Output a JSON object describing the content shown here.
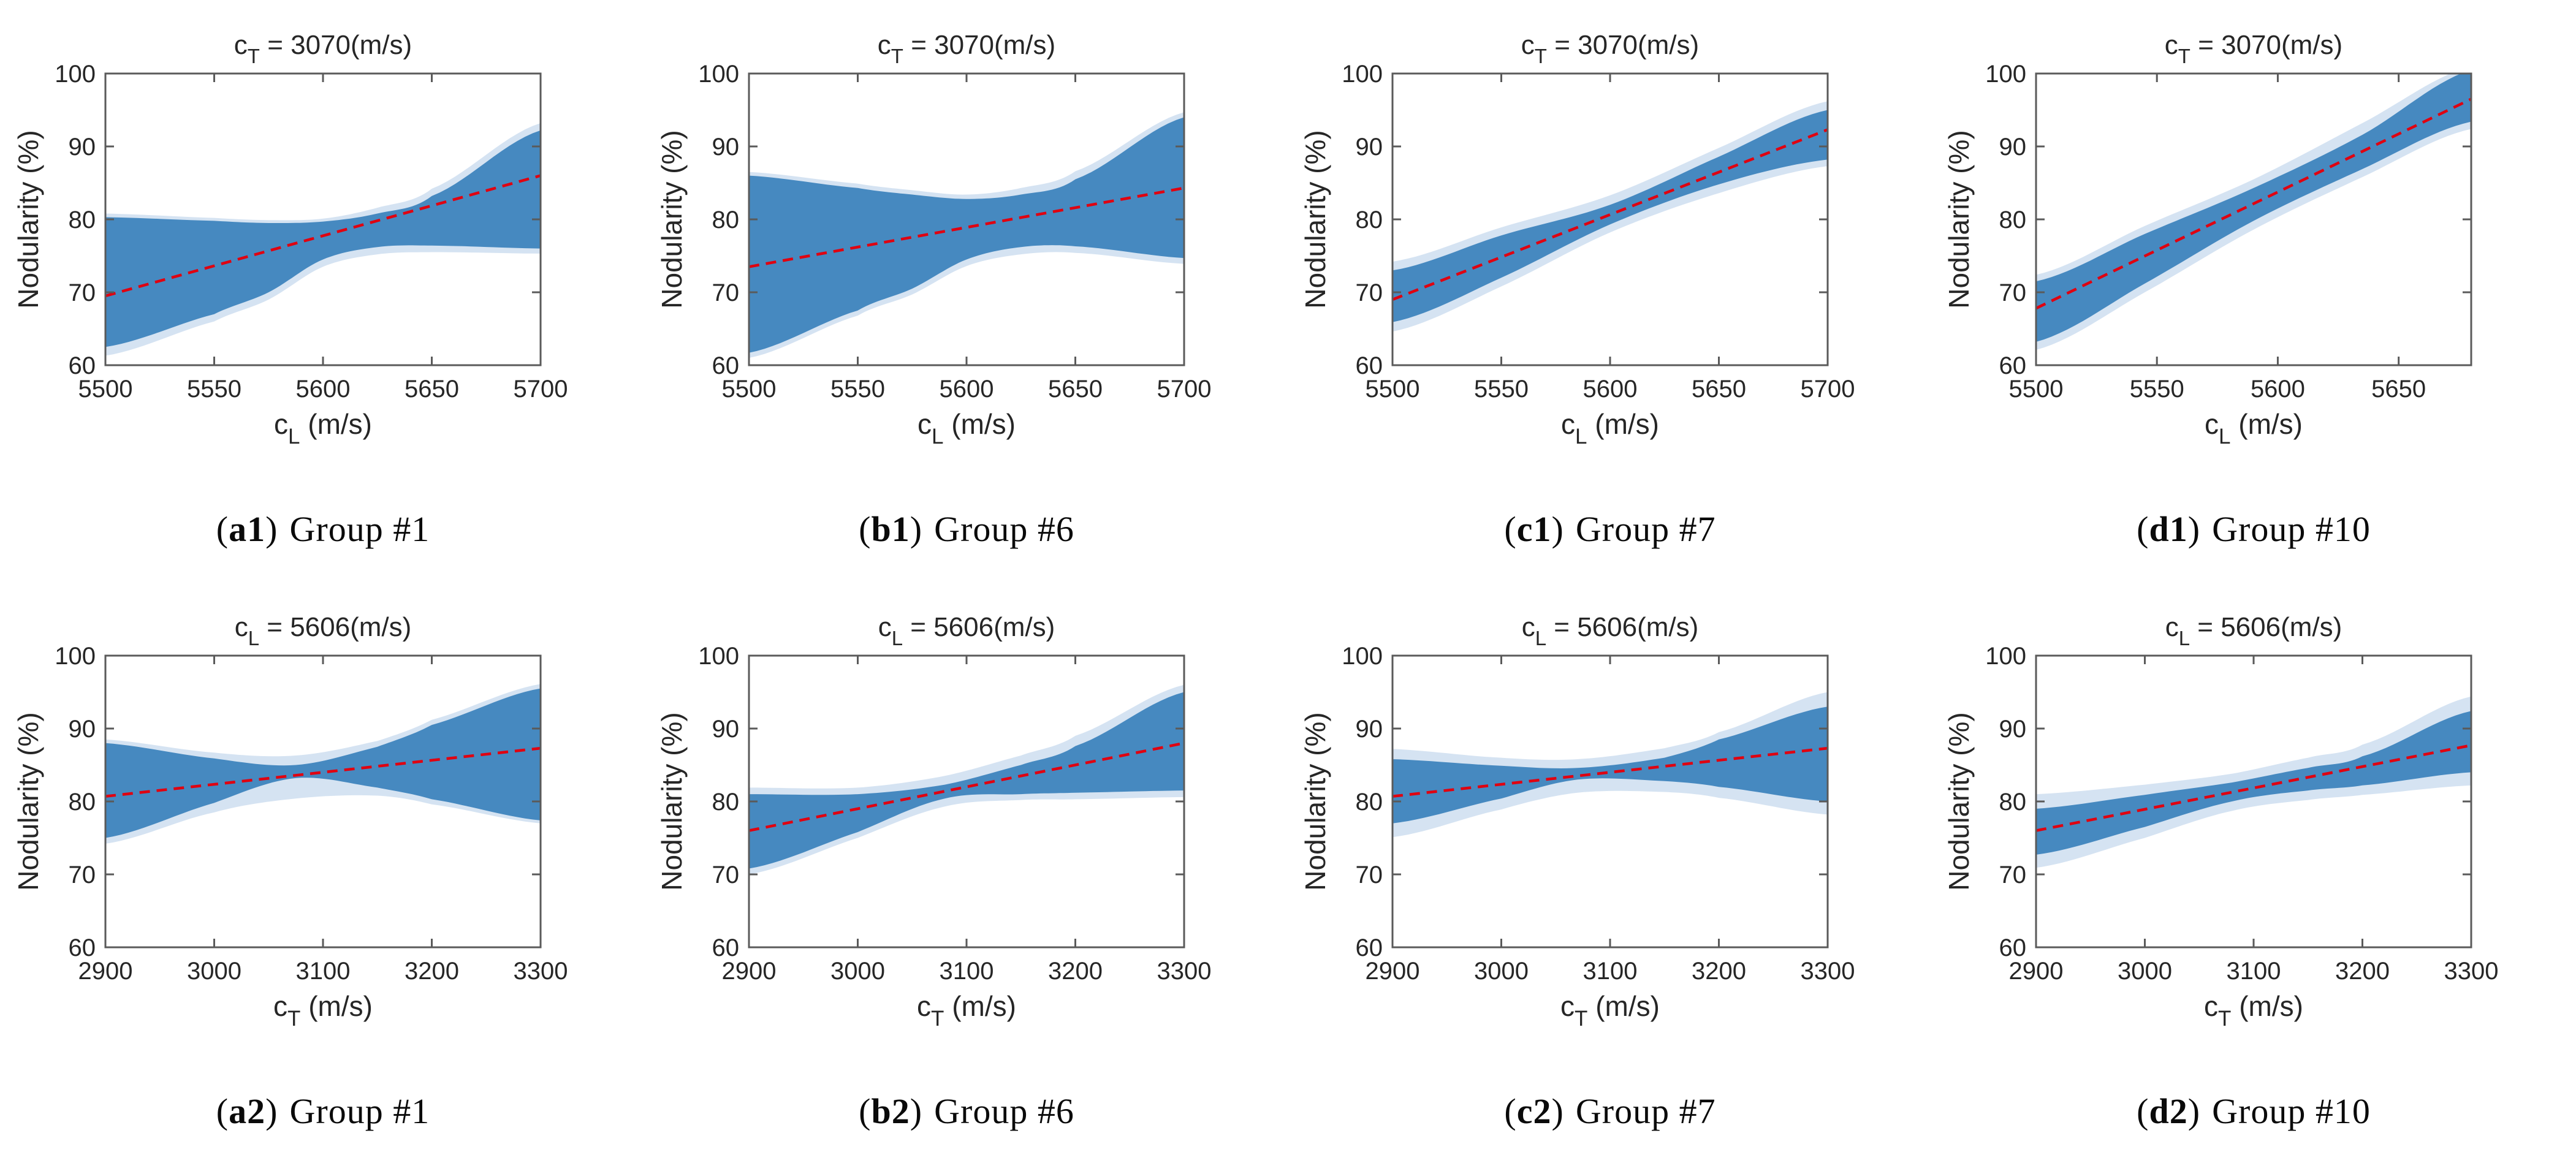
{
  "figure": {
    "ylabel": "Nodularity (%)",
    "ylim": [
      60,
      100
    ],
    "yticks": [
      60,
      70,
      80,
      90,
      100
    ],
    "colors": {
      "outer_band": "#D5E3F2",
      "inner_band": "#4689C0",
      "fit_line": "#E00010",
      "axis": "#5A5A5A",
      "text": "#262626",
      "background": "#FFFFFF"
    }
  },
  "chart_data": [
    {
      "id": "a1",
      "type": "area",
      "caption": {
        "label": "a1",
        "text": "Group #1"
      },
      "title": {
        "base": "c",
        "sub": "T",
        "rest": " = 3070(m/s)"
      },
      "xlabel": {
        "base": "c",
        "sub": "L",
        "rest": " (m/s)"
      },
      "xlim": [
        5500,
        5700
      ],
      "xticks": [
        5500,
        5550,
        5600,
        5650,
        5700
      ],
      "x": [
        5500,
        5550,
        5575,
        5600,
        5625,
        5650,
        5700
      ],
      "outer_low": [
        61.3,
        66.0,
        69.0,
        73.5,
        75.2,
        75.5,
        75.3
      ],
      "inner_low": [
        62.5,
        67.0,
        70.0,
        74.5,
        76.2,
        76.4,
        76.0
      ],
      "inner_high": [
        80.3,
        79.8,
        79.5,
        79.7,
        80.8,
        83.2,
        92.2
      ],
      "outer_high": [
        80.8,
        80.2,
        79.9,
        80.1,
        81.6,
        84.2,
        93.2
      ],
      "fit": {
        "x": [
          5500,
          5700
        ],
        "y": [
          69.5,
          86.0
        ]
      }
    },
    {
      "id": "b1",
      "type": "area",
      "caption": {
        "label": "b1",
        "text": "Group #6"
      },
      "title": {
        "base": "c",
        "sub": "T",
        "rest": " = 3070(m/s)"
      },
      "xlabel": {
        "base": "c",
        "sub": "L",
        "rest": " (m/s)"
      },
      "xlim": [
        5500,
        5700
      ],
      "xticks": [
        5500,
        5550,
        5600,
        5650,
        5700
      ],
      "x": [
        5500,
        5550,
        5575,
        5600,
        5625,
        5650,
        5700
      ],
      "outer_low": [
        61.0,
        66.8,
        69.7,
        73.6,
        75.2,
        75.4,
        73.9
      ],
      "inner_low": [
        61.7,
        67.5,
        70.5,
        74.5,
        76.2,
        76.3,
        74.7
      ],
      "inner_high": [
        86.0,
        84.3,
        83.4,
        82.8,
        83.4,
        85.5,
        94.0
      ],
      "outer_high": [
        86.5,
        84.9,
        84.0,
        83.4,
        84.3,
        86.6,
        94.7
      ],
      "fit": {
        "x": [
          5500,
          5700
        ],
        "y": [
          73.5,
          84.3
        ]
      }
    },
    {
      "id": "c1",
      "type": "area",
      "caption": {
        "label": "c1",
        "text": "Group #7"
      },
      "title": {
        "base": "c",
        "sub": "T",
        "rest": " = 3070(m/s)"
      },
      "xlabel": {
        "base": "c",
        "sub": "L",
        "rest": " (m/s)"
      },
      "xlim": [
        5500,
        5700
      ],
      "xticks": [
        5500,
        5550,
        5600,
        5650,
        5700
      ],
      "x": [
        5500,
        5550,
        5600,
        5650,
        5700
      ],
      "outer_low": [
        64.6,
        70.8,
        78.2,
        83.6,
        87.3
      ],
      "inner_low": [
        65.9,
        72.0,
        79.3,
        84.8,
        88.2
      ],
      "inner_high": [
        73.0,
        77.8,
        82.0,
        88.6,
        95.0
      ],
      "outer_high": [
        74.2,
        78.9,
        83.3,
        89.8,
        96.2
      ],
      "fit": {
        "x": [
          5500,
          5700
        ],
        "y": [
          69.0,
          92.3
        ]
      }
    },
    {
      "id": "d1",
      "type": "area",
      "caption": {
        "label": "d1",
        "text": "Group #10"
      },
      "title": {
        "base": "c",
        "sub": "T",
        "rest": " = 3070(m/s)"
      },
      "xlabel": {
        "base": "c",
        "sub": "L",
        "rest": " (m/s)"
      },
      "xlim": [
        5500,
        5680
      ],
      "xticks": [
        5500,
        5550,
        5600,
        5650
      ],
      "x": [
        5500,
        5545,
        5590,
        5635,
        5680
      ],
      "outer_low": [
        62.1,
        70.0,
        78.6,
        85.8,
        92.4
      ],
      "inner_low": [
        63.2,
        71.2,
        79.8,
        86.9,
        93.4
      ],
      "inner_high": [
        71.5,
        78.0,
        84.3,
        91.6,
        100.5
      ],
      "outer_high": [
        72.4,
        79.1,
        85.5,
        93.2,
        101.0
      ],
      "fit": {
        "x": [
          5500,
          5680
        ],
        "y": [
          67.8,
          96.5
        ]
      }
    },
    {
      "id": "a2",
      "type": "area",
      "caption": {
        "label": "a2",
        "text": "Group #1"
      },
      "title": {
        "base": "c",
        "sub": "L",
        "rest": " = 5606(m/s)"
      },
      "xlabel": {
        "base": "c",
        "sub": "T",
        "rest": " (m/s)"
      },
      "xlim": [
        2900,
        3300
      ],
      "xticks": [
        2900,
        3000,
        3100,
        3200,
        3300
      ],
      "x": [
        2900,
        3000,
        3075,
        3150,
        3200,
        3300
      ],
      "outer_low": [
        74.2,
        78.5,
        80.4,
        80.8,
        79.6,
        77.0
      ],
      "inner_low": [
        75.0,
        79.8,
        83.2,
        81.9,
        80.3,
        77.4
      ],
      "inner_high": [
        88.0,
        85.9,
        85.0,
        87.5,
        90.5,
        95.5
      ],
      "outer_high": [
        88.5,
        86.7,
        86.3,
        88.3,
        91.2,
        96.1
      ],
      "fit": {
        "x": [
          2900,
          3300
        ],
        "y": [
          80.7,
          87.3
        ]
      }
    },
    {
      "id": "b2",
      "type": "area",
      "caption": {
        "label": "b2",
        "text": "Group #6"
      },
      "title": {
        "base": "c",
        "sub": "L",
        "rest": " = 5606(m/s)"
      },
      "xlabel": {
        "base": "c",
        "sub": "T",
        "rest": " (m/s)"
      },
      "xlim": [
        2900,
        3300
      ],
      "xticks": [
        2900,
        3000,
        3100,
        3200,
        3300
      ],
      "x": [
        2900,
        3000,
        3080,
        3150,
        3200,
        3300
      ],
      "outer_low": [
        70.0,
        75.0,
        79.3,
        80.2,
        80.3,
        80.6
      ],
      "inner_low": [
        70.8,
        75.8,
        80.4,
        81.0,
        81.2,
        81.5
      ],
      "inner_high": [
        81.0,
        81.0,
        82.3,
        85.0,
        87.6,
        95.0
      ],
      "outer_high": [
        81.9,
        81.9,
        83.5,
        86.3,
        89.0,
        96.0
      ],
      "fit": {
        "x": [
          2900,
          3300
        ],
        "y": [
          76.0,
          88.0
        ]
      }
    },
    {
      "id": "c2",
      "type": "area",
      "caption": {
        "label": "c2",
        "text": "Group #7"
      },
      "title": {
        "base": "c",
        "sub": "L",
        "rest": " = 5606(m/s)"
      },
      "xlabel": {
        "base": "c",
        "sub": "T",
        "rest": " (m/s)"
      },
      "xlim": [
        2900,
        3300
      ],
      "xticks": [
        2900,
        3000,
        3100,
        3200,
        3300
      ],
      "x": [
        2900,
        3000,
        3070,
        3150,
        3200,
        3300
      ],
      "outer_low": [
        75.1,
        78.9,
        81.2,
        81.3,
        80.5,
        78.2
      ],
      "inner_low": [
        77.0,
        80.4,
        83.0,
        82.8,
        82.0,
        80.0
      ],
      "inner_high": [
        85.8,
        84.9,
        84.6,
        86.0,
        88.5,
        93.0
      ],
      "outer_high": [
        87.2,
        86.0,
        85.8,
        87.3,
        89.5,
        95.0
      ],
      "fit": {
        "x": [
          2900,
          3300
        ],
        "y": [
          80.7,
          87.3
        ]
      }
    },
    {
      "id": "d2",
      "type": "area",
      "caption": {
        "label": "d2",
        "text": "Group #10"
      },
      "title": {
        "base": "c",
        "sub": "L",
        "rest": " = 5606(m/s)"
      },
      "xlabel": {
        "base": "c",
        "sub": "T",
        "rest": " (m/s)"
      },
      "xlim": [
        2900,
        3300
      ],
      "xticks": [
        2900,
        3000,
        3100,
        3200,
        3300
      ],
      "x": [
        2900,
        3000,
        3080,
        3150,
        3200,
        3300
      ],
      "outer_low": [
        70.9,
        75.0,
        78.7,
        80.2,
        80.9,
        82.2
      ],
      "inner_low": [
        72.7,
        76.5,
        80.0,
        81.5,
        82.2,
        84.0
      ],
      "inner_high": [
        79.0,
        80.9,
        82.6,
        84.6,
        86.2,
        92.4
      ],
      "outer_high": [
        81.0,
        82.3,
        83.8,
        86.0,
        87.8,
        94.4
      ],
      "fit": {
        "x": [
          2900,
          3300
        ],
        "y": [
          76.0,
          87.7
        ]
      }
    }
  ]
}
